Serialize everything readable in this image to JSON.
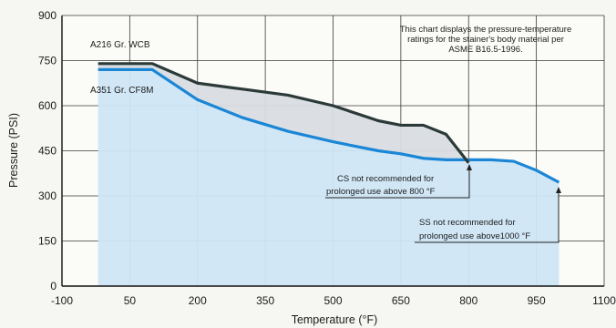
{
  "chart_data": {
    "type": "area",
    "xlabel": "Temperature (°F)",
    "ylabel": "Pressure (PSI)",
    "xlim": [
      -100,
      1100
    ],
    "ylim": [
      0,
      900
    ],
    "x_ticks": [
      -100,
      50,
      200,
      350,
      500,
      650,
      800,
      950,
      1100
    ],
    "y_ticks": [
      0,
      150,
      300,
      450,
      600,
      750,
      900
    ],
    "grid": true,
    "series": [
      {
        "name": "A216 Gr. WCB",
        "color": "#2b3a38",
        "x": [
          -20,
          100,
          200,
          300,
          400,
          500,
          600,
          650,
          700,
          750,
          800
        ],
        "y": [
          740,
          740,
          675,
          655,
          635,
          600,
          550,
          535,
          535,
          505,
          410
        ]
      },
      {
        "name": "A351 Gr. CF8M",
        "color": "#1b86d6",
        "x": [
          -20,
          100,
          200,
          300,
          400,
          500,
          600,
          650,
          700,
          750,
          800,
          850,
          900,
          950,
          1000
        ],
        "y": [
          720,
          720,
          620,
          560,
          515,
          480,
          450,
          440,
          425,
          420,
          420,
          420,
          415,
          385,
          345
        ]
      }
    ],
    "annotations": {
      "header": [
        "This chart displays the pressure-temperature",
        "ratings  for the stainer's body material per",
        "ASME B16.5-1996."
      ],
      "cs_note": [
        "CS not recommended for",
        "prolonged use above 800 °F"
      ],
      "ss_note": [
        "SS not recommended for",
        "prolonged use above1000 °F"
      ]
    }
  }
}
